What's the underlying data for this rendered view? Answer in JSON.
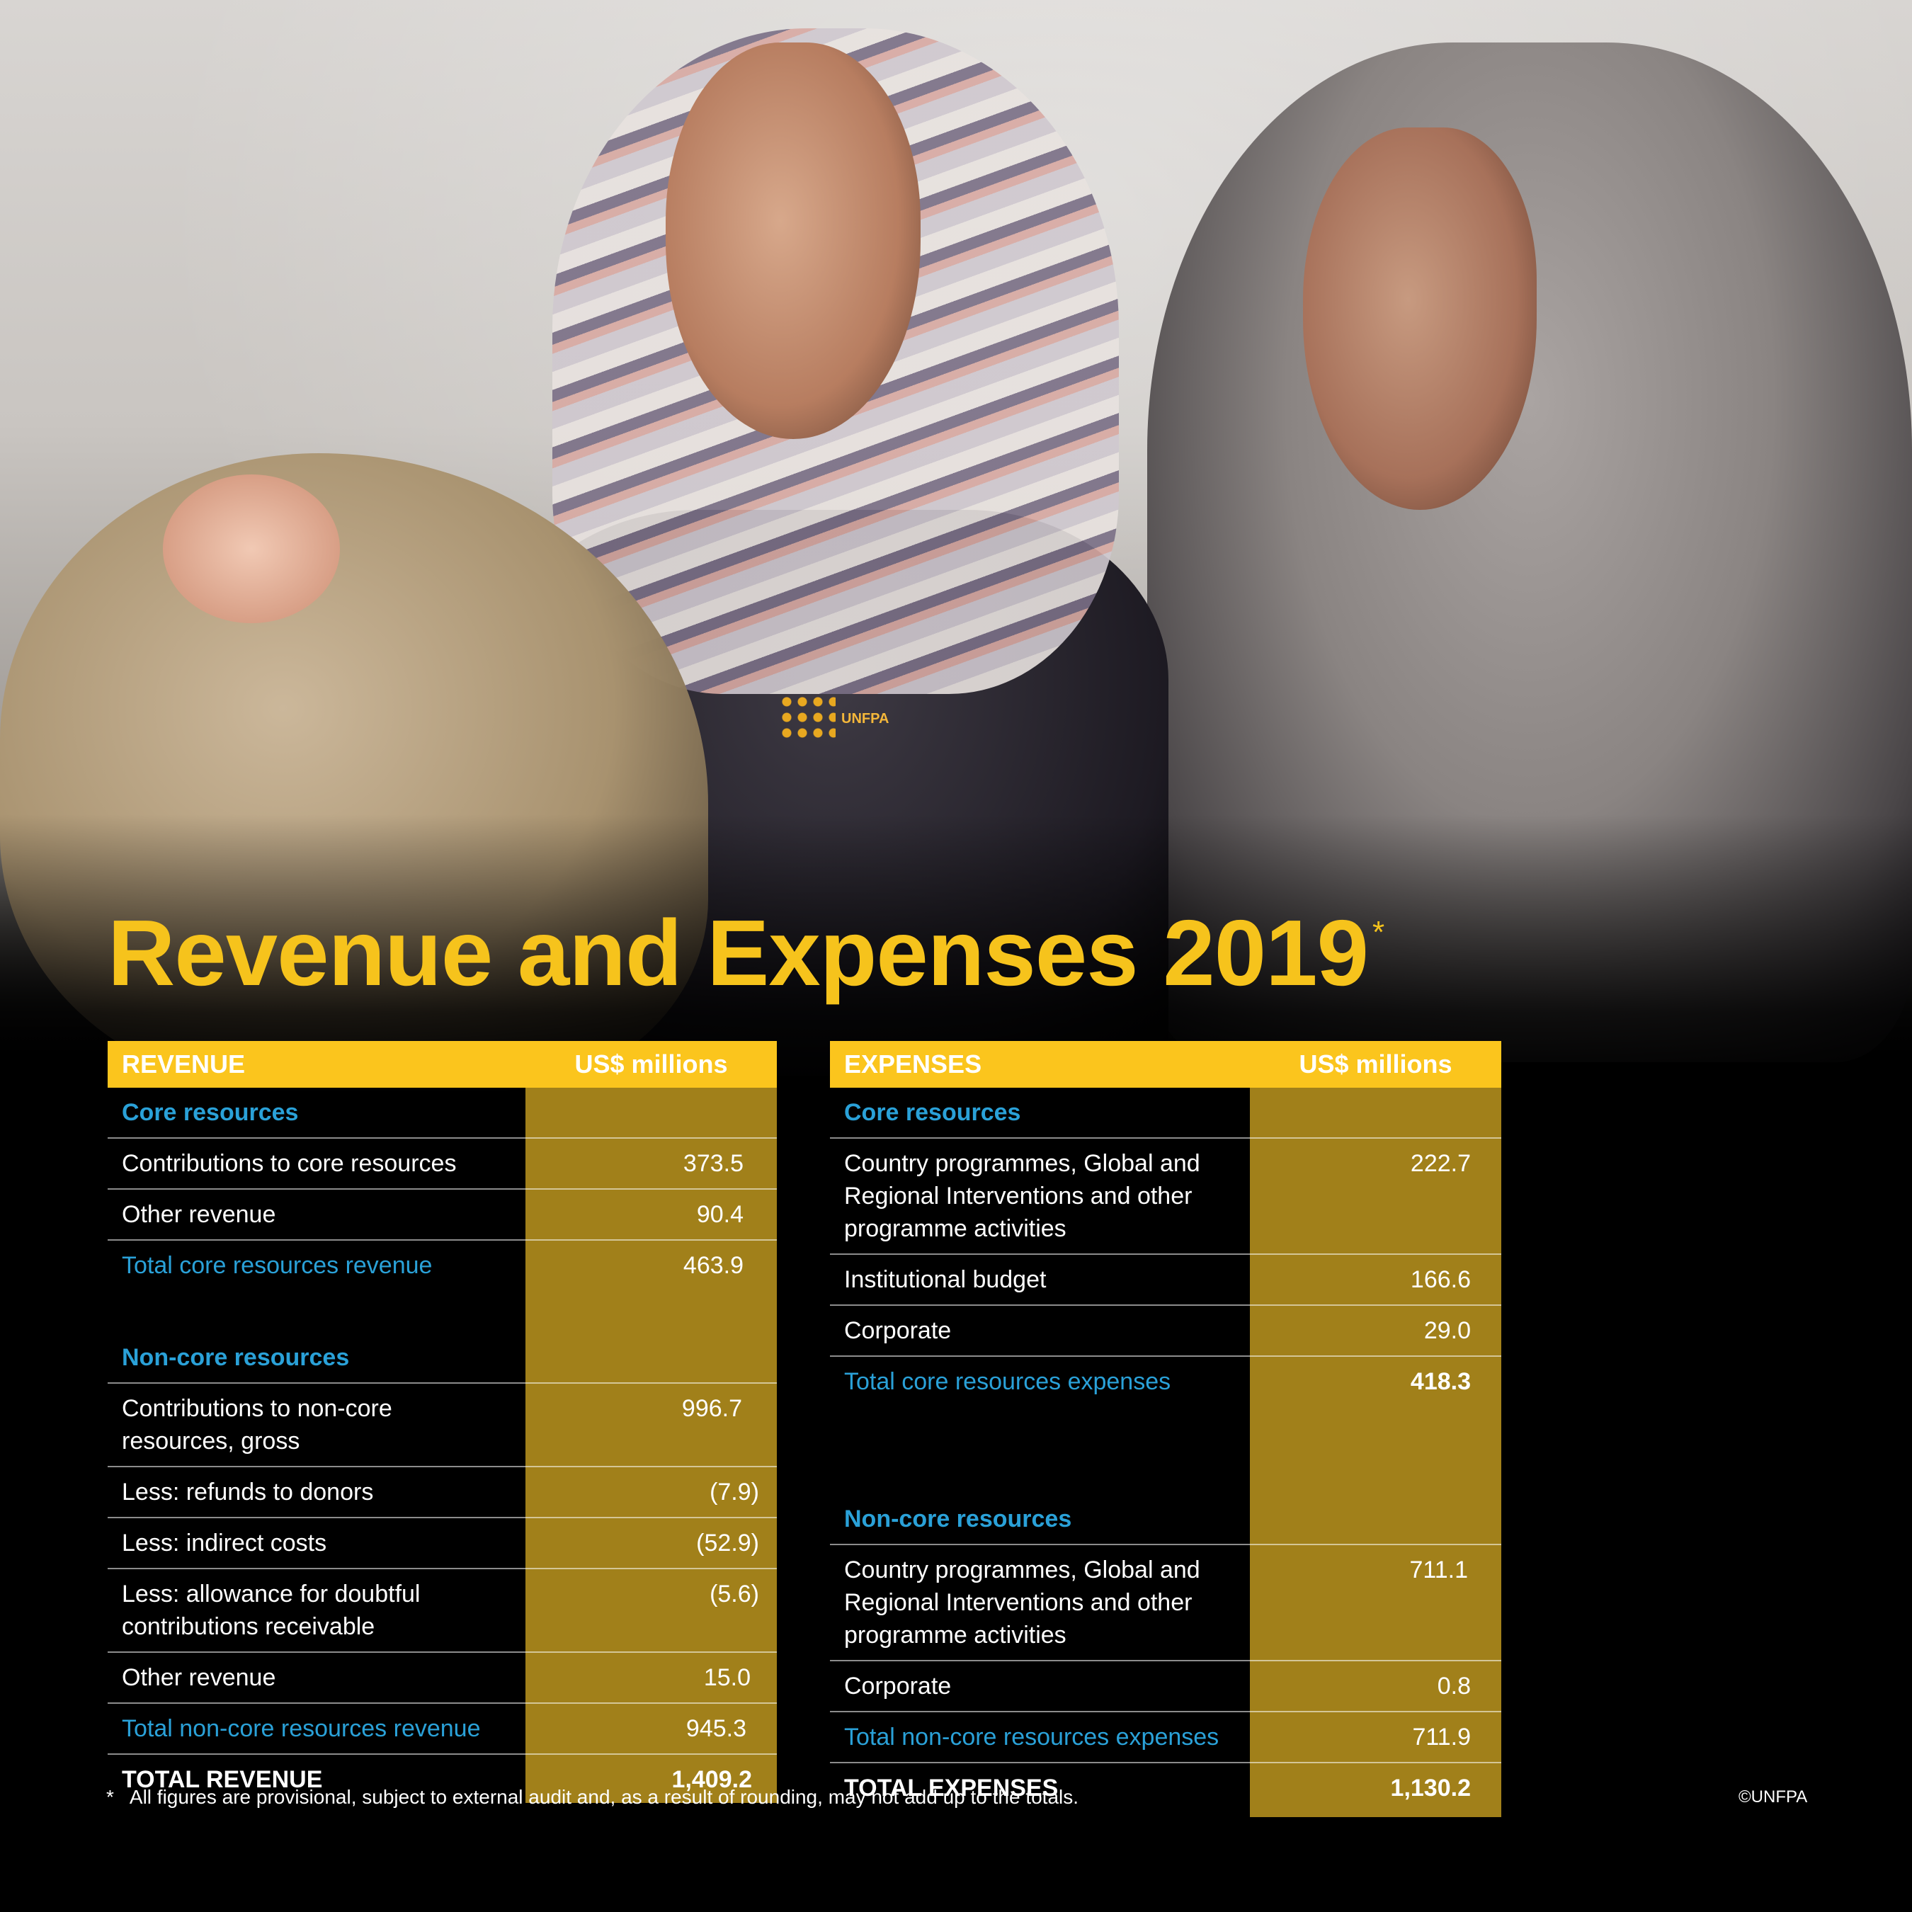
{
  "title": "Revenue and Expenses 2019",
  "title_mark": "*",
  "logo_text": "UNFPA",
  "colors": {
    "accent": "#fbc51d",
    "column": "#c49c20",
    "blue": "#2aa1d8"
  },
  "revenue": {
    "header_label": "REVENUE",
    "header_unit": "US$ millions",
    "core_section": "Core resources",
    "contrib_core_label": "Contributions to core resources",
    "contrib_core_value": "373.5",
    "other_rev_label": "Other revenue",
    "other_rev_value": "90.4",
    "total_core_label": "Total core resources revenue",
    "total_core_value": "463.9",
    "noncore_section": "Non-core resources",
    "contrib_noncore_label": "Contributions to non-core resources, gross",
    "contrib_noncore_value": "996.7",
    "refunds_label": "Less: refunds to donors",
    "refunds_value": "(7.9)",
    "indirect_label": "Less: indirect costs",
    "indirect_value": "(52.9)",
    "allowance_label": "Less: allowance for doubtful contributions receivable",
    "allowance_value": "(5.6)",
    "other_rev2_label": "Other revenue",
    "other_rev2_value": "15.0",
    "total_noncore_label": "Total non-core resources revenue",
    "total_noncore_value": "945.3",
    "grand_total_label": "TOTAL REVENUE",
    "grand_total_value": "1,409.2"
  },
  "expenses": {
    "header_label": "EXPENSES",
    "header_unit": "US$ millions",
    "core_section": "Core resources",
    "country_core_label": "Country programmes, Global and Regional Interventions and other programme activities",
    "country_core_value": "222.7",
    "institutional_label": "Institutional budget",
    "institutional_value": "166.6",
    "corporate_label": "Corporate",
    "corporate_value": "29.0",
    "total_core_label": "Total core resources expenses",
    "total_core_value": "418.3",
    "noncore_section": "Non-core resources",
    "country_noncore_label": "Country programmes, Global and Regional Interventions and other programme activities",
    "country_noncore_value": "711.1",
    "corporate2_label": "Corporate",
    "corporate2_value": "0.8",
    "total_noncore_label": "Total non-core resources expenses",
    "total_noncore_value": "711.9",
    "grand_total_label": "TOTAL EXPENSES",
    "grand_total_value": "1,130.2"
  },
  "footnote_mark": "*",
  "footnote": "All figures are provisional, subject to external audit and, as a result of rounding, may not add up to the totals.",
  "credit": "©UNFPA"
}
